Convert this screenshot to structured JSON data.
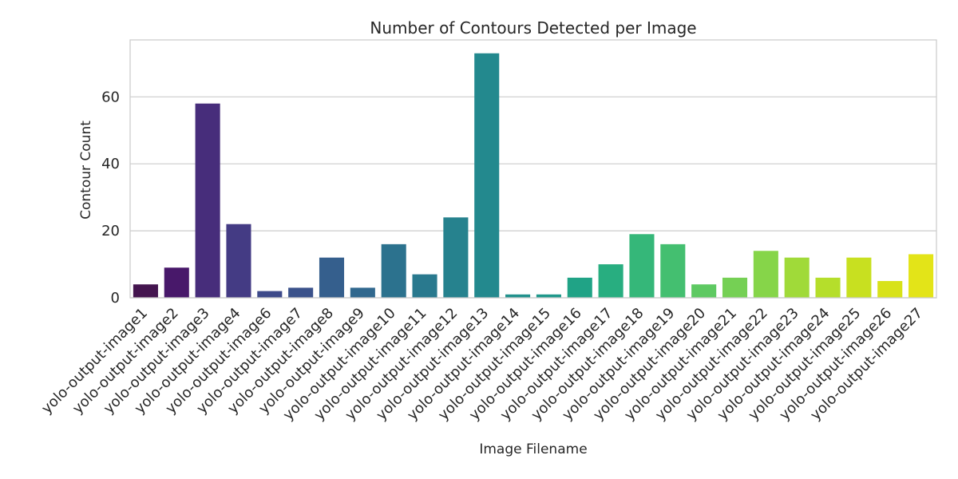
{
  "chart_data": {
    "type": "bar",
    "title": "Number of Contours Detected per Image",
    "xlabel": "Image Filename",
    "ylabel": "Contour Count",
    "ylim": [
      0,
      77
    ],
    "y_ticks": [
      0,
      20,
      40,
      60
    ],
    "grid": true,
    "categories": [
      "yolo-output-image1",
      "yolo-output-image2",
      "yolo-output-image3",
      "yolo-output-image4",
      "yolo-output-image6",
      "yolo-output-image7",
      "yolo-output-image8",
      "yolo-output-image9",
      "yolo-output-image10",
      "yolo-output-image11",
      "yolo-output-image12",
      "yolo-output-image13",
      "yolo-output-image14",
      "yolo-output-image15",
      "yolo-output-image16",
      "yolo-output-image17",
      "yolo-output-image18",
      "yolo-output-image19",
      "yolo-output-image20",
      "yolo-output-image21",
      "yolo-output-image22",
      "yolo-output-image23",
      "yolo-output-image24",
      "yolo-output-image25",
      "yolo-output-image26",
      "yolo-output-image27"
    ],
    "values": [
      4,
      9,
      58,
      22,
      2,
      3,
      12,
      3,
      16,
      7,
      24,
      73,
      1,
      1,
      6,
      10,
      19,
      16,
      4,
      6,
      14,
      12,
      6,
      12,
      5,
      13
    ],
    "colors": [
      "#44154f",
      "#48186a",
      "#472d7b",
      "#443b84",
      "#3d4a8a",
      "#3b528b",
      "#355f8d",
      "#31688e",
      "#2c728e",
      "#29798e",
      "#26828e",
      "#23898e",
      "#21918c",
      "#1f988b",
      "#20a386",
      "#28ae80",
      "#35b779",
      "#44bf70",
      "#5ec962",
      "#75d054",
      "#86d549",
      "#a0da39",
      "#b5de2b",
      "#c8e020",
      "#d8e219",
      "#e3e418"
    ],
    "palette": "viridis",
    "grid_color": "#cccccc",
    "axes_edge_color": "#cccccc",
    "text_color": "#262626"
  }
}
